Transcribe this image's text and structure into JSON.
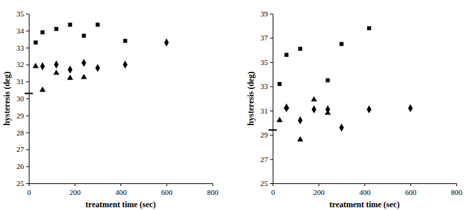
{
  "chart_data": [
    {
      "type": "scatter",
      "x_label": "treatment time (sec)",
      "y_label": "hysteresis (deg)",
      "xlim": [
        0,
        800
      ],
      "xticks": [
        0,
        200,
        400,
        600,
        800
      ],
      "ylim": [
        25,
        35
      ],
      "yticks": [
        25,
        26,
        27,
        28,
        29,
        30,
        31,
        32,
        33,
        34,
        35
      ],
      "reference": 30.3,
      "series": [
        {
          "marker": "square",
          "color": "#000000",
          "x": [
            30,
            60,
            120,
            180,
            240,
            300,
            420
          ],
          "values": [
            33.3,
            33.9,
            34.1,
            34.35,
            33.7,
            34.35,
            33.4
          ]
        },
        {
          "marker": "diamond",
          "color": "#000000",
          "x": [
            60,
            120,
            180,
            240,
            300,
            420,
            600
          ],
          "values": [
            31.9,
            32.0,
            31.7,
            32.1,
            31.8,
            32.0,
            33.3
          ]
        },
        {
          "marker": "triangle",
          "color": "#000000",
          "x": [
            30,
            60,
            120,
            180,
            240
          ],
          "values": [
            31.9,
            30.5,
            31.5,
            31.2,
            31.25
          ]
        }
      ]
    },
    {
      "type": "scatter",
      "x_label": "treatment time (sec)",
      "y_label": "hysteresis (deg)",
      "xlim": [
        0,
        800
      ],
      "xticks": [
        0,
        200,
        400,
        600,
        800
      ],
      "ylim": [
        25,
        39
      ],
      "yticks": [
        25,
        27,
        29,
        31,
        33,
        35,
        37,
        39
      ],
      "reference": 29.4,
      "series": [
        {
          "marker": "square",
          "color": "#000000",
          "x": [
            30,
            60,
            120,
            240,
            300,
            420
          ],
          "values": [
            33.2,
            35.6,
            36.1,
            33.5,
            36.5,
            37.8
          ]
        },
        {
          "marker": "diamond",
          "color": "#000000",
          "x": [
            60,
            120,
            180,
            240,
            300,
            420,
            600
          ],
          "values": [
            31.2,
            30.2,
            31.1,
            31.1,
            29.6,
            31.1,
            31.2
          ]
        },
        {
          "marker": "triangle",
          "color": "#000000",
          "x": [
            30,
            60,
            120,
            180,
            240
          ],
          "values": [
            30.2,
            31.3,
            28.6,
            31.9,
            30.8
          ]
        }
      ]
    }
  ]
}
